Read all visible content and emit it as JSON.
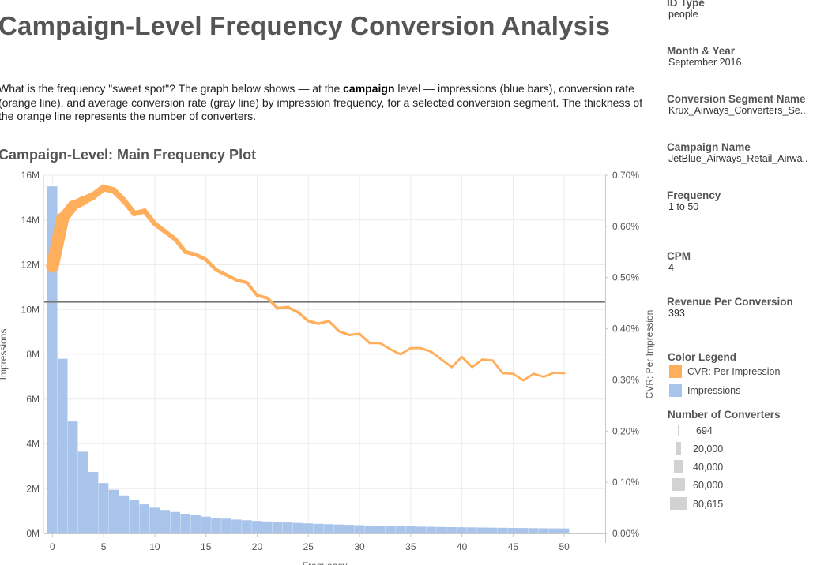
{
  "page": {
    "title": "Campaign-Level Frequency Conversion Analysis",
    "desc_before": "What is the frequency \"sweet spot\"? The graph below shows — at the ",
    "desc_bold": "campaign",
    "desc_after": " level — impressions (blue bars), conversion rate (orange line), and average conversion rate (gray line) by impression frequency, for a selected conversion segment. The thickness of the orange line represents the number of converters.",
    "plot_title": "Campaign-Level: Main Frequency Plot"
  },
  "filters": [
    {
      "label": "ID Type",
      "value": "people"
    },
    {
      "label": "Month & Year",
      "value": "September 2016"
    },
    {
      "label": "Conversion Segment Name",
      "value": "Krux_Airways_Converters_Se.."
    },
    {
      "label": "Campaign Name",
      "value": "JetBlue_Airways_Retail_Airwa.."
    },
    {
      "label": "Frequency",
      "value": "1 to 50"
    },
    {
      "label": "CPM",
      "value": "4"
    },
    {
      "label": "Revenue Per Conversion",
      "value": "393"
    }
  ],
  "color_legend": {
    "title": "Color Legend",
    "items": [
      {
        "label": "CVR: Per Impression",
        "color": "#ffae5c"
      },
      {
        "label": "Impressions",
        "color": "#a9c4ea"
      }
    ]
  },
  "converters_legend": {
    "title": "Number of Converters",
    "items": [
      {
        "label": "694",
        "value": 694
      },
      {
        "label": "20,000",
        "value": 20000
      },
      {
        "label": "40,000",
        "value": 40000
      },
      {
        "label": "60,000",
        "value": 60000
      },
      {
        "label": "80,615",
        "value": 80615
      }
    ]
  },
  "chart_data": {
    "type": "bar",
    "title": "Campaign-Level: Main Frequency Plot",
    "xlabel": "Frequency",
    "ylabel": "Impressions",
    "y2label": "CVR: Per Impression",
    "xlim": [
      -0.8,
      54
    ],
    "ylim": [
      0,
      16000000
    ],
    "y2lim": [
      0,
      0.007
    ],
    "x_ticks": [
      0,
      5,
      10,
      15,
      20,
      25,
      30,
      35,
      40,
      45,
      50
    ],
    "y_ticks": [
      0,
      2000000,
      4000000,
      6000000,
      8000000,
      10000000,
      12000000,
      14000000,
      16000000
    ],
    "y_tick_labels": [
      "0M",
      "2M",
      "4M",
      "6M",
      "8M",
      "10M",
      "12M",
      "14M",
      "16M"
    ],
    "y2_ticks": [
      0,
      0.001,
      0.002,
      0.003,
      0.004,
      0.005,
      0.006,
      0.007
    ],
    "y2_tick_labels": [
      "0.00%",
      "0.10%",
      "0.20%",
      "0.30%",
      "0.40%",
      "0.50%",
      "0.60%",
      "0.70%"
    ],
    "grid": true,
    "colors": {
      "bars": "#a9c4ea",
      "line": "#ffae5c",
      "avg": "#777777",
      "grid": "#ececec"
    },
    "frequency": [
      0,
      1,
      2,
      3,
      4,
      5,
      6,
      7,
      8,
      9,
      10,
      11,
      12,
      13,
      14,
      15,
      16,
      17,
      18,
      19,
      20,
      21,
      22,
      23,
      24,
      25,
      26,
      27,
      28,
      29,
      30,
      31,
      32,
      33,
      34,
      35,
      36,
      37,
      38,
      39,
      40,
      41,
      42,
      43,
      44,
      45,
      46,
      47,
      48,
      49,
      50
    ],
    "impressions": [
      15500000,
      7800000,
      5000000,
      3650000,
      2750000,
      2250000,
      1950000,
      1700000,
      1480000,
      1300000,
      1150000,
      1050000,
      960000,
      880000,
      810000,
      750000,
      700000,
      660000,
      620000,
      590000,
      560000,
      535000,
      510000,
      490000,
      470000,
      450000,
      430000,
      415000,
      400000,
      385000,
      370000,
      355000,
      345000,
      335000,
      325000,
      315000,
      305000,
      298000,
      290000,
      283000,
      276000,
      270000,
      264000,
      258000,
      252000,
      247000,
      242000,
      237000,
      232000,
      228000,
      224000
    ],
    "cvr": [
      0.00522,
      0.00615,
      0.0064,
      0.0065,
      0.0066,
      0.00675,
      0.0067,
      0.0065,
      0.00625,
      0.0063,
      0.00605,
      0.0059,
      0.00575,
      0.0055,
      0.00545,
      0.00535,
      0.00515,
      0.00505,
      0.00495,
      0.0049,
      0.00465,
      0.0046,
      0.0044,
      0.00442,
      0.00432,
      0.00415,
      0.0041,
      0.00415,
      0.00395,
      0.00388,
      0.0039,
      0.00372,
      0.00372,
      0.0036,
      0.0035,
      0.00362,
      0.00362,
      0.00355,
      0.0034,
      0.00325,
      0.00345,
      0.00325,
      0.0034,
      0.00338,
      0.00313,
      0.00312,
      0.00299,
      0.00312,
      0.00306,
      0.00314,
      0.00313
    ],
    "converters": [
      80615,
      60000,
      40000,
      30000,
      22000,
      18000,
      15000,
      12000,
      10000,
      8500,
      7500,
      6500,
      5800,
      5000,
      4400,
      3900,
      3500,
      3200,
      2900,
      2600,
      2300,
      2100,
      1900,
      1750,
      1600,
      1500,
      1400,
      1300,
      1200,
      1150,
      1100,
      1050,
      1000,
      950,
      920,
      900,
      880,
      860,
      840,
      820,
      800,
      790,
      780,
      770,
      760,
      750,
      740,
      730,
      720,
      710,
      694
    ],
    "average_cvr": 0.00452
  }
}
